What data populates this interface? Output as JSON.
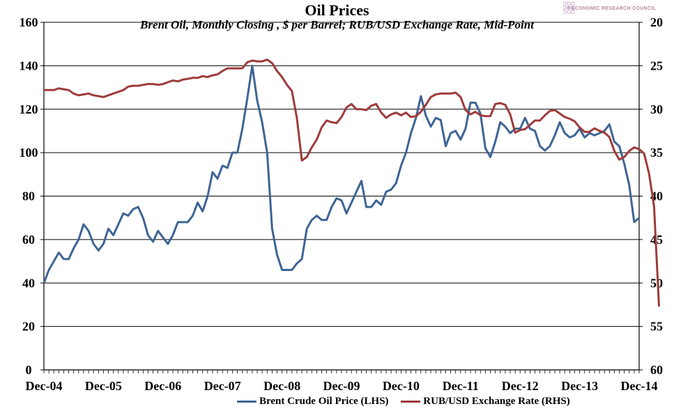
{
  "chart_data": {
    "type": "line",
    "title": "Oil Prices",
    "subtitle": "Brent Oil, Monthly  Closing , $ per Barrel; RUB/USD Exchange Rate, Mid-Point",
    "x_labels": [
      "Dec-04",
      "Dec-05",
      "Dec-06",
      "Dec-07",
      "Dec-08",
      "Dec-09",
      "Dec-10",
      "Dec-11",
      "Dec-12",
      "Dec-13",
      "Dec-14"
    ],
    "left_axis": {
      "ylim": [
        0,
        160
      ],
      "ticks": [
        0,
        20,
        40,
        60,
        80,
        100,
        120,
        140,
        160
      ]
    },
    "right_axis": {
      "ylim": [
        60,
        20
      ],
      "inverted": true,
      "ticks": [
        20,
        25,
        30,
        35,
        40,
        45,
        50,
        55,
        60
      ]
    },
    "grid": "horizontal",
    "legend_position": "bottom",
    "series": [
      {
        "name": "Brent Crude Oil Price (LHS)",
        "axis": "left",
        "color": "#3e6494",
        "values": [
          40,
          46,
          50,
          54,
          51,
          51,
          56,
          60,
          67,
          64,
          58,
          55,
          58,
          65,
          62,
          67,
          72,
          71,
          74,
          75,
          70,
          62,
          59,
          64,
          61,
          58,
          62,
          68,
          68,
          68,
          71,
          77,
          73,
          80,
          91,
          88,
          94,
          93,
          100,
          100,
          111,
          125,
          140,
          124,
          114,
          100,
          65,
          53,
          46,
          46,
          46,
          49,
          51,
          65,
          69,
          71,
          69,
          69,
          75,
          79,
          78,
          72,
          77,
          82,
          87,
          75,
          75,
          78,
          76,
          82,
          83,
          86,
          94,
          100,
          109,
          116,
          126,
          117,
          112,
          116,
          115,
          103,
          109,
          110,
          106,
          111,
          123,
          123,
          118,
          102,
          98,
          105,
          114,
          112,
          109,
          111,
          111,
          116,
          111,
          110,
          103,
          101,
          103,
          108,
          114,
          109,
          107,
          108,
          111,
          107,
          109,
          108,
          109,
          110,
          113,
          105,
          103,
          95,
          85,
          68,
          70
        ]
      },
      {
        "name": "RUB/USD Exchange Rate (RHS)",
        "axis": "right",
        "color": "#9e3a3a",
        "values": [
          27.8,
          27.8,
          27.8,
          27.6,
          27.7,
          27.8,
          28.2,
          28.4,
          28.3,
          28.2,
          28.4,
          28.5,
          28.6,
          28.4,
          28.2,
          28.0,
          27.8,
          27.4,
          27.3,
          27.3,
          27.2,
          27.1,
          27.1,
          27.2,
          27.1,
          26.9,
          26.7,
          26.8,
          26.6,
          26.5,
          26.4,
          26.4,
          26.2,
          26.3,
          26.1,
          26.0,
          25.6,
          25.3,
          25.3,
          25.3,
          25.3,
          24.6,
          24.4,
          24.5,
          24.5,
          24.3,
          24.7,
          25.6,
          26.3,
          27.2,
          27.9,
          31.0,
          35.9,
          35.5,
          34.4,
          33.5,
          32.1,
          31.3,
          31.5,
          31.6,
          30.9,
          29.8,
          29.4,
          30.0,
          30.0,
          30.1,
          29.6,
          29.4,
          30.4,
          31.0,
          30.6,
          30.4,
          30.7,
          30.4,
          30.9,
          30.8,
          30.3,
          29.5,
          28.6,
          28.3,
          28.2,
          28.2,
          28.2,
          28.1,
          28.6,
          30.1,
          30.6,
          30.3,
          30.7,
          30.8,
          30.8,
          29.4,
          29.3,
          29.5,
          30.6,
          32.7,
          32.4,
          32.3,
          31.8,
          31.3,
          31.3,
          30.7,
          30.2,
          30.1,
          30.5,
          30.9,
          31.1,
          31.4,
          32.1,
          32.6,
          32.6,
          32.2,
          32.5,
          32.7,
          33.2,
          34.8,
          35.8,
          35.5,
          34.8,
          34.4,
          34.6,
          35.1,
          37.4,
          41.2,
          52.7
        ]
      }
    ]
  },
  "logo": {
    "text": "ECONOMIC RESEARCH COUNCIL"
  }
}
